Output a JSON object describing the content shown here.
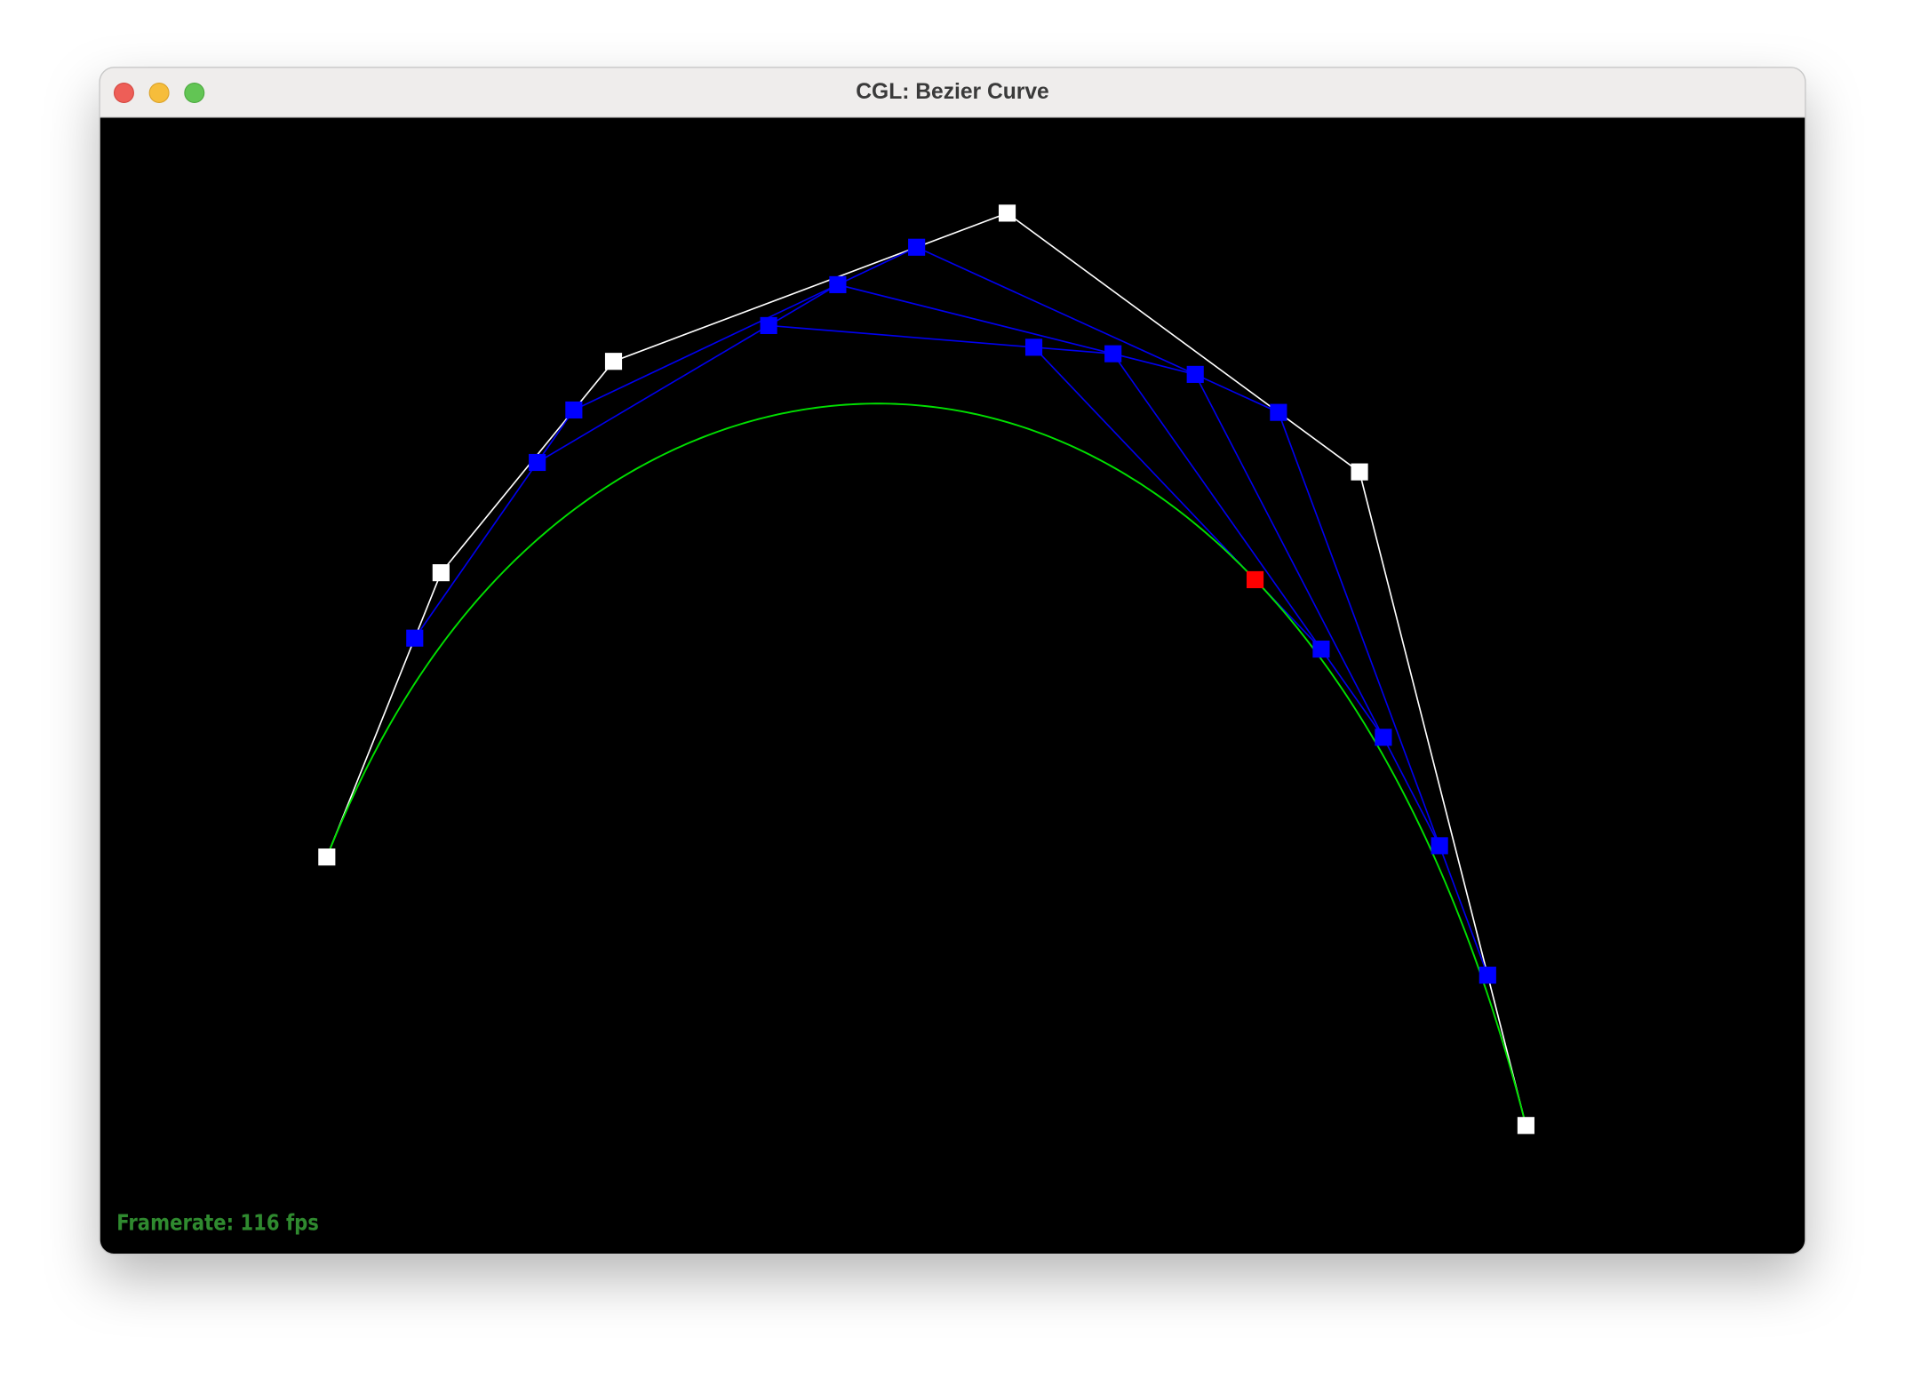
{
  "window": {
    "title": "CGL: Bezier Curve"
  },
  "overlay": {
    "framerate": "Framerate: 116 fps"
  }
}
